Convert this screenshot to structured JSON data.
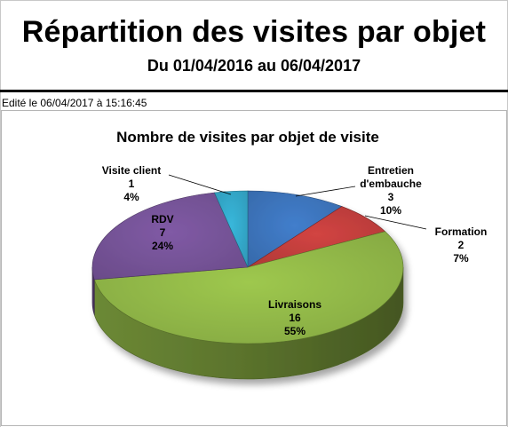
{
  "report": {
    "title": "Répartition des visites par objet",
    "subtitle": "Du 01/04/2016 au 06/04/2017",
    "edited": "Edité le 06/04/2017 à 15:16:45"
  },
  "chart_data": {
    "type": "pie",
    "title": "Nombre de visites par objet de visite",
    "start_angle_deg": 0,
    "slices": [
      {
        "lines": [
          "Entretien",
          "d'embauche"
        ],
        "value": 3,
        "percent": "10%",
        "color": "#3f78c2"
      },
      {
        "lines": [
          "Formation"
        ],
        "value": 2,
        "percent": "7%",
        "color": "#c8413f"
      },
      {
        "lines": [
          "Livraisons"
        ],
        "value": 16,
        "percent": "55%",
        "color": "#96be4a"
      },
      {
        "lines": [
          "RDV"
        ],
        "value": 7,
        "percent": "24%",
        "color": "#7a569d"
      },
      {
        "lines": [
          "Visite client"
        ],
        "value": 1,
        "percent": "4%",
        "color": "#35aed1"
      }
    ]
  }
}
